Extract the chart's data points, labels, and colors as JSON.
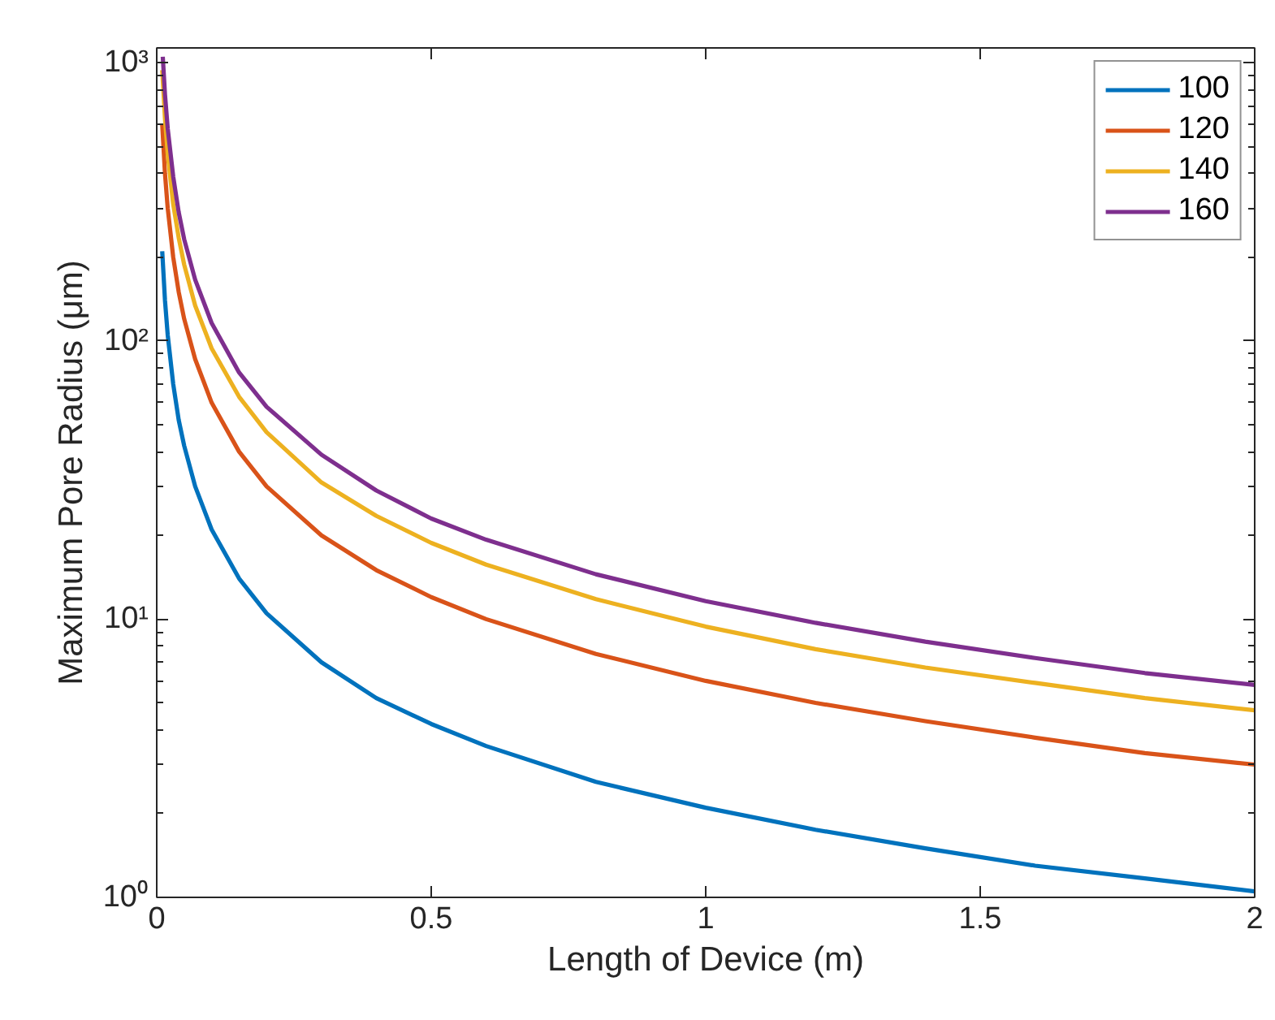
{
  "chart_data": {
    "type": "line",
    "xlabel": "Length of Device (m)",
    "ylabel": "Maximum Pore Radius (μm)",
    "log": "y",
    "grid": false,
    "legend": "top right",
    "xlim": [
      0,
      2
    ],
    "xticks": [
      0,
      0.5,
      1,
      1.5,
      2
    ],
    "ylim": [
      1,
      1130
    ],
    "yticks": [
      {
        "value": 1,
        "label": "10⁰"
      },
      {
        "value": 10,
        "label": "10¹"
      },
      {
        "value": 100,
        "label": "10²"
      },
      {
        "value": 1000,
        "label": "10³"
      }
    ],
    "series": [
      {
        "name": "100",
        "color": "#0072bd",
        "x": [
          0.01,
          0.015,
          0.02,
          0.03,
          0.04,
          0.05,
          0.07,
          0.1,
          0.15,
          0.2,
          0.3,
          0.4,
          0.5,
          0.6,
          0.8,
          1,
          1.2,
          1.4,
          1.6,
          1.8,
          2
        ],
        "values": [
          210,
          140,
          105,
          70,
          52,
          42,
          30,
          21,
          14,
          10.5,
          7,
          5.2,
          4.2,
          3.5,
          2.6,
          2.1,
          1.75,
          1.5,
          1.3,
          1.17,
          1.05
        ]
      },
      {
        "name": "120",
        "color": "#d95319",
        "x": [
          0.01,
          0.015,
          0.02,
          0.03,
          0.04,
          0.05,
          0.07,
          0.1,
          0.15,
          0.2,
          0.3,
          0.4,
          0.5,
          0.6,
          0.8,
          1,
          1.2,
          1.4,
          1.6,
          1.8,
          2
        ],
        "values": [
          600,
          400,
          300,
          200,
          150,
          120,
          86,
          60,
          40,
          30,
          20,
          15,
          12,
          10,
          7.5,
          6,
          5,
          4.3,
          3.75,
          3.3,
          3.0
        ]
      },
      {
        "name": "140",
        "color": "#edb120",
        "x": [
          0.01,
          0.015,
          0.02,
          0.03,
          0.04,
          0.05,
          0.07,
          0.1,
          0.15,
          0.2,
          0.3,
          0.4,
          0.5,
          0.6,
          0.8,
          1,
          1.2,
          1.4,
          1.6,
          1.8,
          2
        ],
        "values": [
          940,
          630,
          470,
          310,
          235,
          188,
          134,
          94,
          63,
          47,
          31,
          23.5,
          18.8,
          15.7,
          11.8,
          9.4,
          7.8,
          6.7,
          5.9,
          5.2,
          4.7
        ]
      },
      {
        "name": "160",
        "color": "#7e2f8e",
        "x": [
          0.011,
          0.015,
          0.02,
          0.03,
          0.04,
          0.05,
          0.07,
          0.1,
          0.15,
          0.2,
          0.3,
          0.4,
          0.5,
          0.6,
          0.8,
          1,
          1.2,
          1.4,
          1.6,
          1.8,
          2
        ],
        "values": [
          1050,
          770,
          580,
          390,
          290,
          232,
          166,
          116,
          77,
          58,
          39,
          29,
          23,
          19.3,
          14.5,
          11.6,
          9.7,
          8.3,
          7.25,
          6.4,
          5.8
        ]
      }
    ]
  }
}
